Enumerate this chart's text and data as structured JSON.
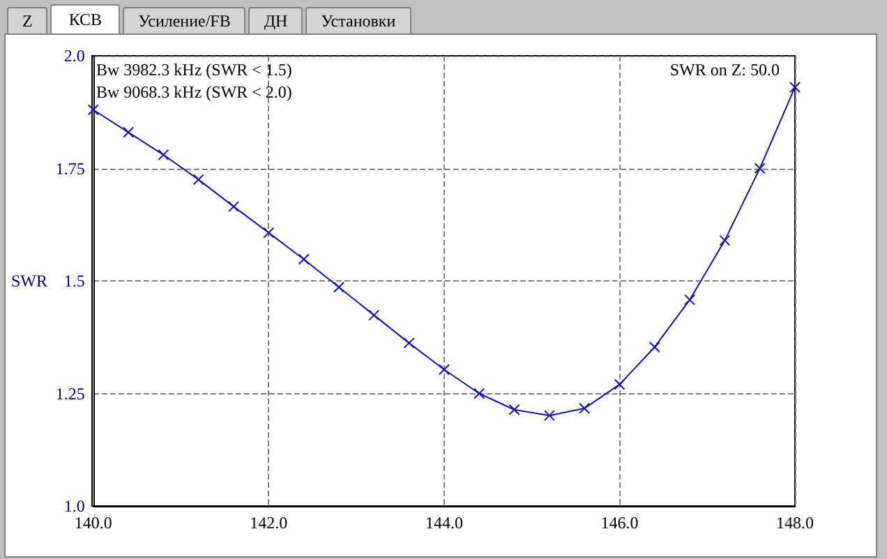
{
  "chart_data": {
    "type": "line",
    "ylabel": "SWR",
    "annotations": [
      "Bw 3982.3 kHz (SWR < 1.5)",
      "Bw 9068.3 kHz (SWR < 2.0)",
      "SWR on Z: 50.0",
      "Z",
      "КСВ",
      "Усиление/FB",
      "ДН",
      "Установки"
    ],
    "x": [
      140.0,
      140.4,
      140.8,
      141.2,
      141.6,
      142.0,
      142.4,
      142.8,
      143.2,
      143.6,
      144.0,
      144.4,
      144.8,
      145.2,
      145.6,
      146.0,
      146.4,
      146.8,
      147.2,
      147.6,
      148.0
    ],
    "series": [
      {
        "color": "#1010b8",
        "values": [
          1.88,
          1.83,
          1.78,
          1.725,
          1.665,
          1.607,
          1.548,
          1.486,
          1.424,
          1.362,
          1.303,
          1.25,
          1.214,
          1.201,
          1.217,
          1.27,
          1.353,
          1.458,
          1.59,
          1.75,
          1.93
        ]
      }
    ],
    "xlim": [
      140,
      148
    ],
    "xticks": [
      {
        "value": 140,
        "label": "140.0"
      },
      {
        "value": 142,
        "label": "142.0"
      },
      {
        "value": 144,
        "label": "144.0"
      },
      {
        "value": 146,
        "label": "146.0"
      },
      {
        "value": 148,
        "label": "148.0"
      }
    ],
    "ylim": [
      1,
      2
    ],
    "yticks": [
      {
        "value": 1,
        "label": "1.0"
      },
      1.25,
      1.5,
      1.75,
      {
        "value": 2,
        "label": "2.0"
      }
    ],
    "grid": true,
    "marker": "cross",
    "line_style": "solid"
  }
}
